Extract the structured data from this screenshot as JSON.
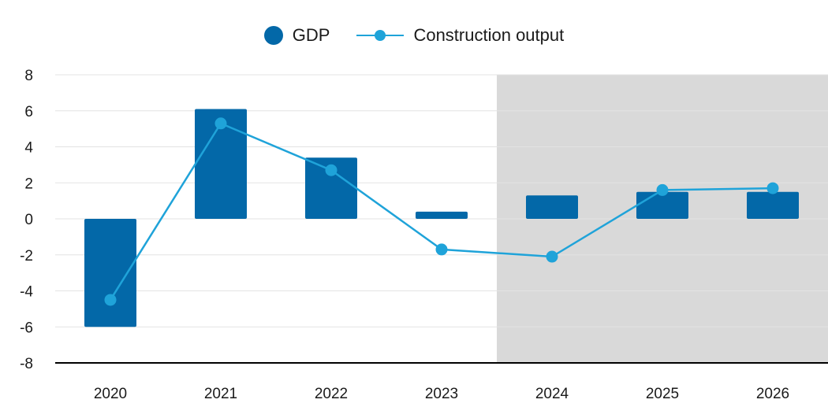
{
  "chart_data": {
    "type": "bar",
    "categories": [
      "2020",
      "2021",
      "2022",
      "2023",
      "2024",
      "2025",
      "2026"
    ],
    "series": [
      {
        "name": "GDP",
        "type": "bar",
        "values": [
          -6.0,
          6.1,
          3.4,
          0.4,
          1.3,
          1.5,
          1.5
        ]
      },
      {
        "name": "Construction output",
        "type": "line",
        "values": [
          -4.5,
          5.3,
          2.7,
          -1.7,
          -2.1,
          1.6,
          1.7
        ]
      }
    ],
    "ylim": [
      -8,
      8
    ],
    "yticks": [
      8,
      6,
      4,
      2,
      0,
      -2,
      -4,
      -6,
      -8
    ],
    "forecast_categories": [
      "2024",
      "2025",
      "2026"
    ],
    "legend_position": "top-center",
    "grid": true,
    "colors": {
      "bar": "#0368a8",
      "line": "#1fa3d9",
      "forecast_shade": "#d9d9d9",
      "grid": "#e3e3e3",
      "axis": "#000000"
    }
  },
  "legend": {
    "gdp_label": "GDP",
    "construction_label": "Construction output"
  }
}
